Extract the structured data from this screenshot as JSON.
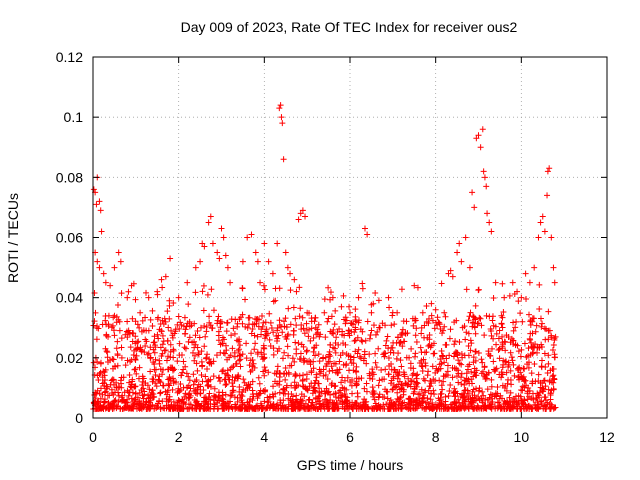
{
  "chart_data": {
    "type": "scatter",
    "title": "Day 009 of 2023, Rate Of TEC Index for receiver ous2",
    "xlabel": "GPS time / hours",
    "ylabel": "ROTI / TECUs",
    "xlim": [
      0,
      12
    ],
    "ylim": [
      0,
      0.12
    ],
    "x_ticks": [
      "0",
      "2",
      "4",
      "6",
      "8",
      "10",
      "12"
    ],
    "y_ticks": [
      "0",
      "0.02",
      "0.04",
      "0.06",
      "0.08",
      "0.1",
      "0.12"
    ],
    "grid": true,
    "legend": "none",
    "marker": "plus",
    "color": "#ff0000",
    "series": [
      {
        "x_range": [
          0,
          10.8
        ],
        "points": [
          [
            0.02,
            0.076
          ],
          [
            0.05,
            0.075
          ],
          [
            0.08,
            0.071
          ],
          [
            0.1,
            0.08
          ],
          [
            0.15,
            0.072
          ],
          [
            0.18,
            0.069
          ],
          [
            0.2,
            0.062
          ],
          [
            0.05,
            0.055
          ],
          [
            0.1,
            0.052
          ],
          [
            0.15,
            0.05
          ],
          [
            0.25,
            0.048
          ],
          [
            0.3,
            0.045
          ],
          [
            0.4,
            0.044
          ],
          [
            0.5,
            0.05
          ],
          [
            0.6,
            0.055
          ],
          [
            0.65,
            0.052
          ],
          [
            0.8,
            0.04
          ],
          [
            0.9,
            0.044
          ],
          [
            1.1,
            0.035
          ],
          [
            1.3,
            0.04
          ],
          [
            1.5,
            0.042
          ],
          [
            1.6,
            0.046
          ],
          [
            1.7,
            0.047
          ],
          [
            1.8,
            0.053
          ],
          [
            2.0,
            0.04
          ],
          [
            2.2,
            0.045
          ],
          [
            2.4,
            0.05
          ],
          [
            2.5,
            0.052
          ],
          [
            2.55,
            0.058
          ],
          [
            2.6,
            0.057
          ],
          [
            2.7,
            0.065
          ],
          [
            2.75,
            0.067
          ],
          [
            2.8,
            0.058
          ],
          [
            2.9,
            0.055
          ],
          [
            2.95,
            0.053
          ],
          [
            3.0,
            0.063
          ],
          [
            3.05,
            0.06
          ],
          [
            3.1,
            0.054
          ],
          [
            3.15,
            0.05
          ],
          [
            3.2,
            0.045
          ],
          [
            3.5,
            0.052
          ],
          [
            3.6,
            0.06
          ],
          [
            3.7,
            0.061
          ],
          [
            3.8,
            0.055
          ],
          [
            3.85,
            0.052
          ],
          [
            3.9,
            0.045
          ],
          [
            4.0,
            0.058
          ],
          [
            4.1,
            0.052
          ],
          [
            4.2,
            0.048
          ],
          [
            4.3,
            0.058
          ],
          [
            4.35,
            0.103
          ],
          [
            4.38,
            0.104
          ],
          [
            4.4,
            0.1
          ],
          [
            4.42,
            0.098
          ],
          [
            4.45,
            0.086
          ],
          [
            4.5,
            0.055
          ],
          [
            4.55,
            0.05
          ],
          [
            4.6,
            0.048
          ],
          [
            4.7,
            0.046
          ],
          [
            4.75,
            0.042
          ],
          [
            4.8,
            0.066
          ],
          [
            4.85,
            0.068
          ],
          [
            4.9,
            0.069
          ],
          [
            4.95,
            0.067
          ],
          [
            5.0,
            0.035
          ],
          [
            5.2,
            0.03
          ],
          [
            5.4,
            0.035
          ],
          [
            5.6,
            0.04
          ],
          [
            5.8,
            0.037
          ],
          [
            6.0,
            0.035
          ],
          [
            6.2,
            0.04
          ],
          [
            6.3,
            0.043
          ],
          [
            6.35,
            0.063
          ],
          [
            6.4,
            0.061
          ],
          [
            6.5,
            0.035
          ],
          [
            6.7,
            0.03
          ],
          [
            6.9,
            0.04
          ],
          [
            7.1,
            0.035
          ],
          [
            7.3,
            0.028
          ],
          [
            7.5,
            0.044
          ],
          [
            7.7,
            0.035
          ],
          [
            7.9,
            0.038
          ],
          [
            8.0,
            0.036
          ],
          [
            8.2,
            0.035
          ],
          [
            8.3,
            0.048
          ],
          [
            8.35,
            0.049
          ],
          [
            8.4,
            0.047
          ],
          [
            8.5,
            0.055
          ],
          [
            8.55,
            0.058
          ],
          [
            8.6,
            0.052
          ],
          [
            8.7,
            0.06
          ],
          [
            8.8,
            0.05
          ],
          [
            8.85,
            0.075
          ],
          [
            8.9,
            0.07
          ],
          [
            8.95,
            0.093
          ],
          [
            9.0,
            0.094
          ],
          [
            9.05,
            0.09
          ],
          [
            9.1,
            0.096
          ],
          [
            9.12,
            0.082
          ],
          [
            9.15,
            0.08
          ],
          [
            9.18,
            0.077
          ],
          [
            9.2,
            0.068
          ],
          [
            9.25,
            0.065
          ],
          [
            9.3,
            0.062
          ],
          [
            9.4,
            0.045
          ],
          [
            9.6,
            0.04
          ],
          [
            9.8,
            0.045
          ],
          [
            9.9,
            0.042
          ],
          [
            10.0,
            0.04
          ],
          [
            10.1,
            0.048
          ],
          [
            10.2,
            0.045
          ],
          [
            10.3,
            0.05
          ],
          [
            10.4,
            0.06
          ],
          [
            10.45,
            0.065
          ],
          [
            10.5,
            0.067
          ],
          [
            10.55,
            0.062
          ],
          [
            10.6,
            0.074
          ],
          [
            10.62,
            0.082
          ],
          [
            10.65,
            0.083
          ],
          [
            10.7,
            0.06
          ],
          [
            10.75,
            0.05
          ],
          [
            10.78,
            0.045
          ]
        ],
        "dense_band": {
          "description_values": "most points between 0.003 and 0.03",
          "y_range": [
            0.003,
            0.03
          ]
        }
      }
    ]
  }
}
